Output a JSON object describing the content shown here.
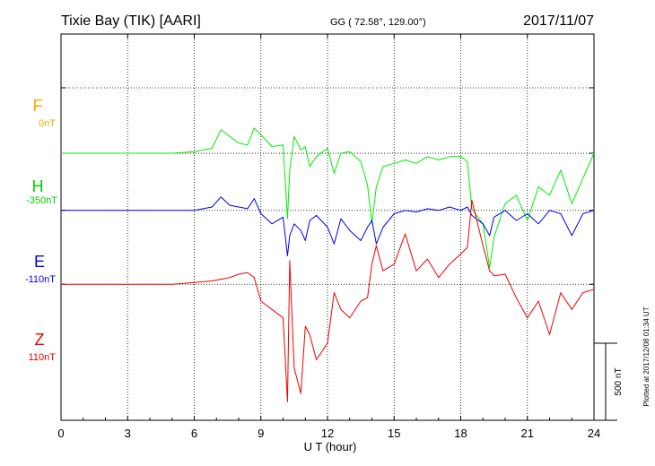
{
  "header": {
    "station": "Tixie Bay (TIK)  [AARI]",
    "coords": "GG ( 72.58°, 129.00°)",
    "date": "2017/11/07"
  },
  "footer": {
    "plotted": "Plotted at 2017/12/08 01:34  UT"
  },
  "scale_bar": {
    "label": "500 nT",
    "value_nT": 500
  },
  "colors": {
    "F": "#ffa500",
    "H": "#00ee00",
    "E": "#0000ee",
    "Z": "#ee0000"
  },
  "chart_data": {
    "type": "line",
    "title": "Tixie Bay (TIK)  [AARI]",
    "xlabel": "U T (hour)",
    "ylabel": "",
    "xlim": [
      0,
      24
    ],
    "ylim": [
      -1250,
      1050
    ],
    "x_ticks": [
      "0",
      "3",
      "6",
      "9",
      "12",
      "15",
      "18",
      "21",
      "24"
    ],
    "grid": true,
    "grid_style": "dotted",
    "y_unit_note": "each component offset from its baseline; 500 nT scale bar",
    "series": [
      {
        "name": "F",
        "baseline_label": "0nT",
        "offset": 730,
        "color": "#ffa500",
        "x": [],
        "values": []
      },
      {
        "name": "H",
        "baseline_label": "-350nT",
        "offset": 340,
        "color": "#00ee00",
        "x": [
          0,
          1,
          2,
          3,
          4,
          5,
          6,
          6.8,
          7.2,
          7.6,
          8.0,
          8.4,
          8.7,
          9.0,
          9.5,
          10.0,
          10.2,
          10.3,
          10.5,
          10.8,
          11.0,
          11.2,
          11.5,
          12.0,
          12.3,
          12.6,
          13.0,
          13.5,
          13.8,
          14.0,
          14.2,
          14.5,
          15.0,
          15.5,
          16.0,
          16.5,
          17.0,
          17.5,
          18.0,
          18.3,
          18.5,
          19.0,
          19.3,
          19.5,
          20.0,
          20.5,
          21.0,
          21.5,
          22.0,
          22.5,
          23.0,
          23.5,
          24.0
        ],
        "values": [
          0,
          0,
          0,
          0,
          0,
          0,
          10,
          30,
          140,
          100,
          60,
          50,
          150,
          110,
          40,
          50,
          -390,
          -100,
          100,
          20,
          40,
          -80,
          -20,
          30,
          -120,
          0,
          10,
          -50,
          -190,
          -420,
          -200,
          -80,
          -60,
          -40,
          -60,
          -20,
          -40,
          -20,
          -20,
          -50,
          -330,
          -420,
          -680,
          -500,
          -300,
          -250,
          -400,
          -200,
          -250,
          -100,
          -300,
          -150,
          0
        ]
      },
      {
        "name": "E",
        "baseline_label": "-110nT",
        "offset": 0,
        "color": "#0000ee",
        "x": [
          0,
          1,
          2,
          3,
          4,
          5,
          6,
          6.8,
          7.2,
          7.6,
          8.0,
          8.4,
          8.7,
          9.0,
          9.5,
          10.0,
          10.2,
          10.3,
          10.5,
          10.8,
          11.0,
          11.2,
          11.5,
          12.0,
          12.3,
          12.6,
          13.0,
          13.5,
          13.8,
          14.0,
          14.2,
          14.5,
          15.0,
          15.5,
          16.0,
          16.5,
          17.0,
          17.5,
          18.0,
          18.3,
          18.5,
          19.0,
          19.3,
          19.5,
          20.0,
          20.5,
          21.0,
          21.5,
          22.0,
          22.5,
          23.0,
          23.5,
          24.0
        ],
        "values": [
          0,
          0,
          0,
          0,
          0,
          0,
          0,
          20,
          80,
          30,
          20,
          10,
          70,
          -20,
          -80,
          -40,
          -270,
          -150,
          -80,
          -120,
          -180,
          -60,
          -30,
          -100,
          -200,
          -50,
          -120,
          -180,
          -100,
          -60,
          -200,
          -100,
          -20,
          0,
          -10,
          10,
          0,
          20,
          0,
          20,
          -30,
          -80,
          -150,
          -40,
          0,
          -60,
          -20,
          -80,
          0,
          -20,
          -150,
          -20,
          0
        ]
      },
      {
        "name": "Z",
        "baseline_label": "110nT",
        "offset": -440,
        "color": "#ee0000",
        "x": [
          0,
          1,
          2,
          3,
          4,
          5,
          6,
          6.8,
          7.2,
          7.6,
          8.0,
          8.4,
          8.7,
          9.0,
          9.5,
          10.0,
          10.2,
          10.3,
          10.5,
          10.8,
          11.0,
          11.2,
          11.5,
          12.0,
          12.3,
          12.6,
          13.0,
          13.5,
          13.8,
          14.0,
          14.2,
          14.5,
          15.0,
          15.5,
          16.0,
          16.5,
          17.0,
          17.5,
          18.0,
          18.3,
          18.5,
          19.0,
          19.3,
          19.5,
          20.0,
          20.5,
          21.0,
          21.5,
          22.0,
          22.5,
          23.0,
          23.5,
          24.0
        ],
        "values": [
          0,
          0,
          0,
          0,
          0,
          0,
          10,
          20,
          30,
          40,
          60,
          70,
          40,
          -100,
          -150,
          -200,
          -700,
          140,
          -500,
          -650,
          -250,
          -300,
          -450,
          -350,
          -50,
          -150,
          -200,
          -100,
          -80,
          120,
          230,
          80,
          120,
          300,
          80,
          150,
          40,
          120,
          180,
          220,
          500,
          230,
          80,
          50,
          60,
          -80,
          -200,
          -100,
          -300,
          -50,
          -150,
          -50,
          -30
        ]
      }
    ]
  }
}
